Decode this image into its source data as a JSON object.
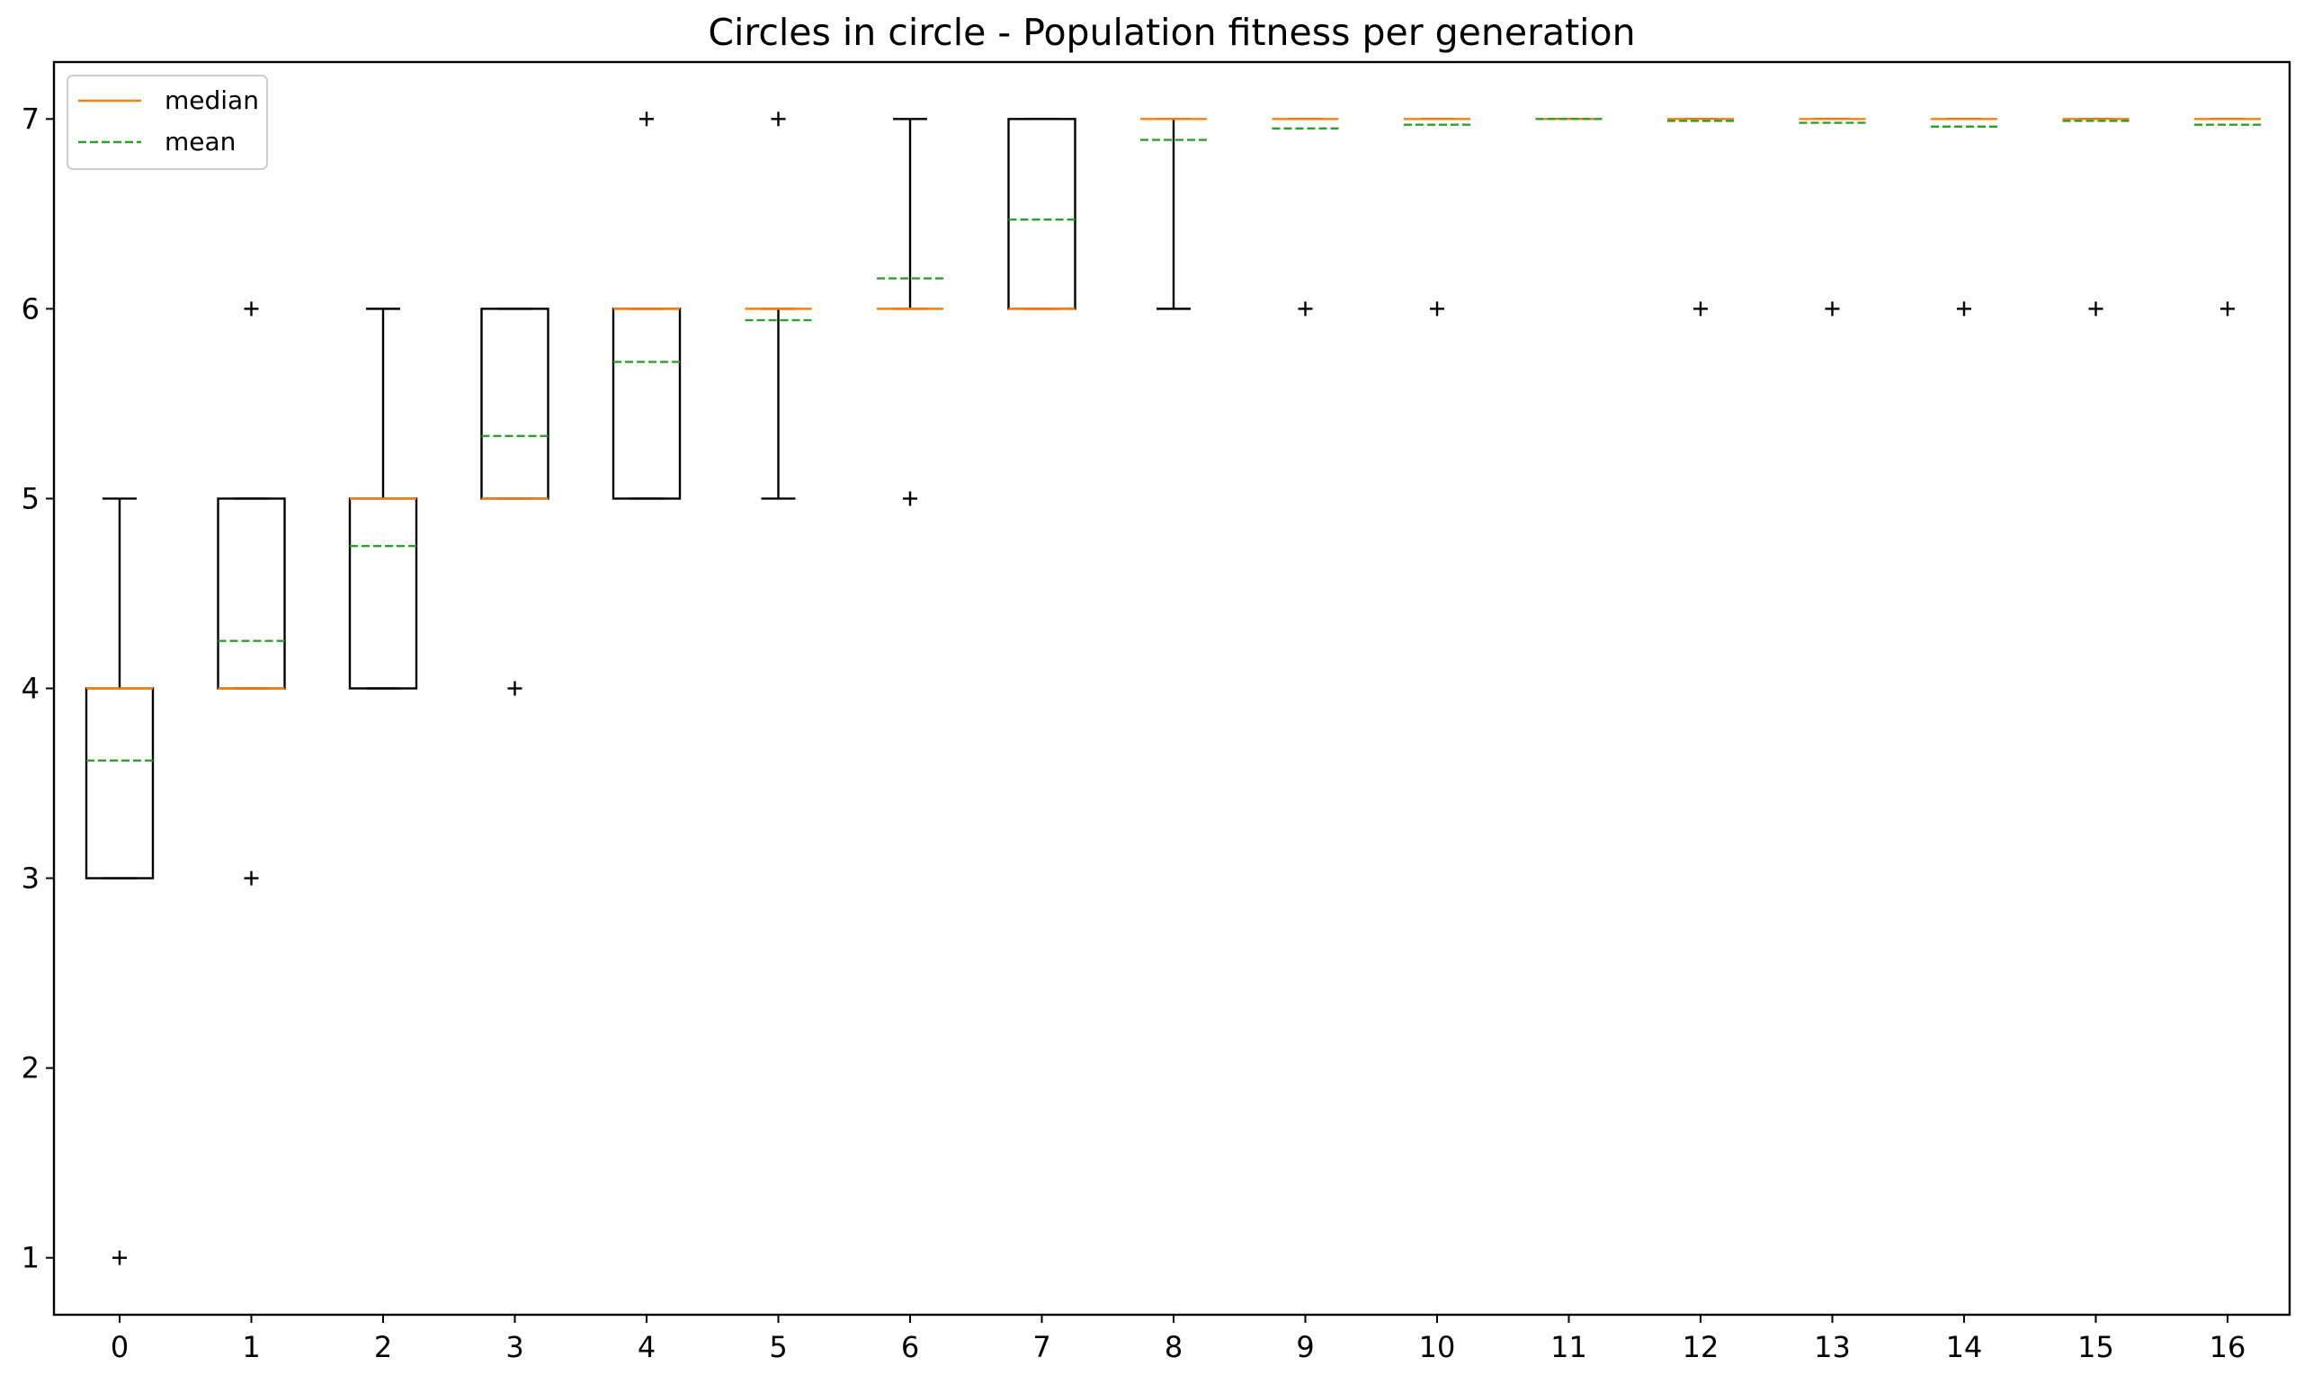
{
  "chart_data": {
    "type": "box",
    "title": "Circles in circle - Population fitness per generation",
    "xlabel": "",
    "ylabel": "",
    "categories": [
      "0",
      "1",
      "2",
      "3",
      "4",
      "5",
      "6",
      "7",
      "8",
      "9",
      "10",
      "11",
      "12",
      "13",
      "14",
      "15",
      "16"
    ],
    "x_ticks": [
      "0",
      "1",
      "2",
      "3",
      "4",
      "5",
      "6",
      "7",
      "8",
      "9",
      "10",
      "11",
      "12",
      "13",
      "14",
      "15",
      "16"
    ],
    "y_ticks": [
      "1",
      "2",
      "3",
      "4",
      "5",
      "6",
      "7"
    ],
    "ylim": [
      0.7,
      7.3
    ],
    "grid": false,
    "legend": {
      "position": "top-left",
      "entries": [
        {
          "label": "median",
          "style": "solid",
          "color": "#ff7f0e"
        },
        {
          "label": "mean",
          "style": "dashed",
          "color": "#2ca02c"
        }
      ]
    },
    "colors": {
      "box": "#000000",
      "median": "#ff7f0e",
      "mean": "#2ca02c"
    },
    "boxes": [
      {
        "gen": 0,
        "whislo": 3,
        "q1": 3,
        "med": 4,
        "q3": 4,
        "whishi": 5,
        "mean": 3.62,
        "fliers": [
          1
        ]
      },
      {
        "gen": 1,
        "whislo": 4,
        "q1": 4,
        "med": 4,
        "q3": 5,
        "whishi": 5,
        "mean": 4.25,
        "fliers": [
          3,
          6
        ]
      },
      {
        "gen": 2,
        "whislo": 4,
        "q1": 4,
        "med": 5,
        "q3": 5,
        "whishi": 6,
        "mean": 4.75,
        "fliers": []
      },
      {
        "gen": 3,
        "whislo": 5,
        "q1": 5,
        "med": 5,
        "q3": 6,
        "whishi": 6,
        "mean": 5.33,
        "fliers": [
          4
        ]
      },
      {
        "gen": 4,
        "whislo": 5,
        "q1": 5,
        "med": 6,
        "q3": 6,
        "whishi": 6,
        "mean": 5.72,
        "fliers": [
          7
        ]
      },
      {
        "gen": 5,
        "whislo": 5,
        "q1": 6,
        "med": 6,
        "q3": 6,
        "whishi": 6,
        "mean": 5.94,
        "fliers": [
          7
        ]
      },
      {
        "gen": 6,
        "whislo": 6,
        "q1": 6,
        "med": 6,
        "q3": 6,
        "whishi": 7,
        "mean": 6.16,
        "fliers": [
          5
        ]
      },
      {
        "gen": 7,
        "whislo": 6,
        "q1": 6,
        "med": 6,
        "q3": 7,
        "whishi": 7,
        "mean": 6.47,
        "fliers": []
      },
      {
        "gen": 8,
        "whislo": 6,
        "q1": 7,
        "med": 7,
        "q3": 7,
        "whishi": 7,
        "mean": 6.89,
        "fliers": []
      },
      {
        "gen": 9,
        "whislo": 7,
        "q1": 7,
        "med": 7,
        "q3": 7,
        "whishi": 7,
        "mean": 6.95,
        "fliers": [
          6
        ]
      },
      {
        "gen": 10,
        "whislo": 7,
        "q1": 7,
        "med": 7,
        "q3": 7,
        "whishi": 7,
        "mean": 6.97,
        "fliers": [
          6
        ]
      },
      {
        "gen": 11,
        "whislo": 7,
        "q1": 7,
        "med": 7,
        "q3": 7,
        "whishi": 7,
        "mean": 7.0,
        "fliers": []
      },
      {
        "gen": 12,
        "whislo": 7,
        "q1": 7,
        "med": 7,
        "q3": 7,
        "whishi": 7,
        "mean": 6.99,
        "fliers": [
          6
        ]
      },
      {
        "gen": 13,
        "whislo": 7,
        "q1": 7,
        "med": 7,
        "q3": 7,
        "whishi": 7,
        "mean": 6.98,
        "fliers": [
          6
        ]
      },
      {
        "gen": 14,
        "whislo": 7,
        "q1": 7,
        "med": 7,
        "q3": 7,
        "whishi": 7,
        "mean": 6.96,
        "fliers": [
          6
        ]
      },
      {
        "gen": 15,
        "whislo": 7,
        "q1": 7,
        "med": 7,
        "q3": 7,
        "whishi": 7,
        "mean": 6.99,
        "fliers": [
          6
        ]
      },
      {
        "gen": 16,
        "whislo": 7,
        "q1": 7,
        "med": 7,
        "q3": 7,
        "whishi": 7,
        "mean": 6.97,
        "fliers": [
          6
        ]
      }
    ]
  }
}
